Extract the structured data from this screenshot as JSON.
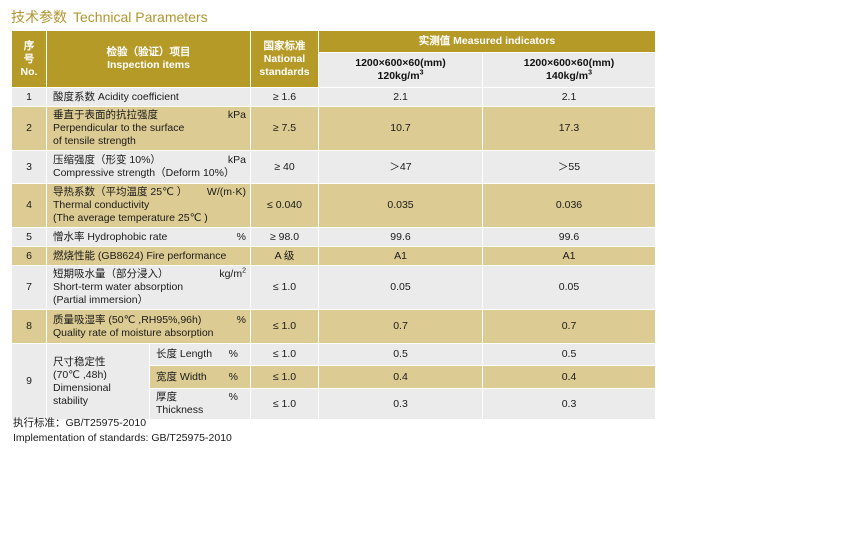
{
  "title": {
    "cn": "技术参数",
    "en": "Technical Parameters"
  },
  "header": {
    "no": {
      "cn1": "序",
      "cn2": "号",
      "en": "No."
    },
    "item": {
      "cn": "检验（验证）项目",
      "en": "Inspection items"
    },
    "std": {
      "cn": "国家标准",
      "en1": "National",
      "en2": "standards"
    },
    "measured": "实测值 Measured indicators",
    "spec1": {
      "size": "1200×600×60(mm)",
      "density": "120kg/m",
      "exp": "3"
    },
    "spec2": {
      "size": "1200×600×60(mm)",
      "density": "140kg/m",
      "exp": "3"
    }
  },
  "rows": [
    {
      "no": "1",
      "l1": "酸度系数 Acidity coefficient",
      "unit": "",
      "std": "≥ 1.6",
      "v1": "2.1",
      "v2": "2.1"
    },
    {
      "no": "2",
      "l1": "垂直于表面的抗拉强度",
      "l2": "Perpendicular to the surface",
      "l3": "of tensile strength",
      "unit": "kPa",
      "std": "≥ 7.5",
      "v1": "10.7",
      "v2": "17.3"
    },
    {
      "no": "3",
      "l1": "压缩强度（形变 10%）",
      "l2": "Compressive strength（Deform 10%）",
      "unit": "kPa",
      "std": "≥ 40",
      "v1": "＞47",
      "v2": "＞55"
    },
    {
      "no": "4",
      "l1": "导热系数（平均温度 25℃ ）",
      "l2": "Thermal conductivity",
      "l3": "(The average temperature 25℃ )",
      "unit": "W/(m·K)",
      "std": "≤ 0.040",
      "v1": "0.035",
      "v2": "0.036"
    },
    {
      "no": "5",
      "l1": "憎水率 Hydrophobic rate",
      "unit": "%",
      "std": "≥ 98.0",
      "v1": "99.6",
      "v2": "99.6"
    },
    {
      "no": "6",
      "l1": "燃烧性能 (GB8624) Fire performance",
      "unit": "",
      "std": "A 级",
      "v1": "A1",
      "v2": "A1"
    },
    {
      "no": "7",
      "l1": "短期吸水量（部分浸入）",
      "l2": "Short-term water absorption",
      "l3": "(Partial immersion）",
      "unit": "kg/m",
      "unit_exp": "2",
      "std": "≤ 1.0",
      "v1": "0.05",
      "v2": "0.05"
    },
    {
      "no": "8",
      "l1": "质量吸湿率 (50℃ ,RH95%,96h)",
      "l2": "Quality rate of moisture absorption",
      "unit": "%",
      "std": "≤ 1.0",
      "v1": "0.7",
      "v2": "0.7"
    }
  ],
  "row9": {
    "no": "9",
    "l1": "尺寸稳定性",
    "l2": "(70℃ ,48h)",
    "l3": "Dimensional",
    "l4": "stability",
    "subs": [
      {
        "label": "长度 Length",
        "unit": "%",
        "std": "≤ 1.0",
        "v1": "0.5",
        "v2": "0.5"
      },
      {
        "label": "宽度 Width",
        "unit": "%",
        "std": "≤ 1.0",
        "v1": "0.4",
        "v2": "0.4"
      },
      {
        "label": "厚度 Thickness",
        "unit": "%",
        "std": "≤ 1.0",
        "v1": "0.3",
        "v2": "0.3"
      }
    ]
  },
  "footer": {
    "line1": "执行标准：GB/T25975-2010",
    "line2": "Implementation of standards: GB/T25975-2010"
  },
  "colors": {
    "header": "#b59a28",
    "tan_row": "#dccb92",
    "grey_row": "#ebebeb",
    "title": "#b0962f"
  }
}
